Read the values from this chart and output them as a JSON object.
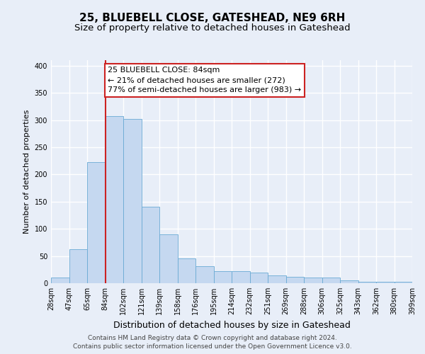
{
  "title": "25, BLUEBELL CLOSE, GATESHEAD, NE9 6RH",
  "subtitle": "Size of property relative to detached houses in Gateshead",
  "xlabel": "Distribution of detached houses by size in Gateshead",
  "ylabel": "Number of detached properties",
  "bar_labels": [
    "28sqm",
    "47sqm",
    "65sqm",
    "84sqm",
    "102sqm",
    "121sqm",
    "139sqm",
    "158sqm",
    "176sqm",
    "195sqm",
    "214sqm",
    "232sqm",
    "251sqm",
    "269sqm",
    "288sqm",
    "306sqm",
    "325sqm",
    "343sqm",
    "362sqm",
    "380sqm",
    "399sqm"
  ],
  "bar_values": [
    10,
    63,
    222,
    307,
    302,
    140,
    90,
    46,
    31,
    22,
    22,
    20,
    14,
    12,
    10,
    10,
    5,
    2,
    2,
    2
  ],
  "bar_color": "#c5d8f0",
  "bar_edge_color": "#6aaad4",
  "vline_color": "#cc2222",
  "annotation_text": "25 BLUEBELL CLOSE: 84sqm\n← 21% of detached houses are smaller (272)\n77% of semi-detached houses are larger (983) →",
  "annotation_box_color": "#ffffff",
  "annotation_box_edge_color": "#cc2222",
  "ylim": [
    0,
    410
  ],
  "yticks": [
    0,
    50,
    100,
    150,
    200,
    250,
    300,
    350,
    400
  ],
  "footer_line1": "Contains HM Land Registry data © Crown copyright and database right 2024.",
  "footer_line2": "Contains public sector information licensed under the Open Government Licence v3.0.",
  "fig_bg_color": "#e8eef8",
  "plot_bg_color": "#e8eef8",
  "grid_color": "#ffffff",
  "title_fontsize": 11,
  "subtitle_fontsize": 9.5,
  "xlabel_fontsize": 9,
  "ylabel_fontsize": 8,
  "tick_fontsize": 7,
  "footer_fontsize": 6.5,
  "annotation_fontsize": 8
}
